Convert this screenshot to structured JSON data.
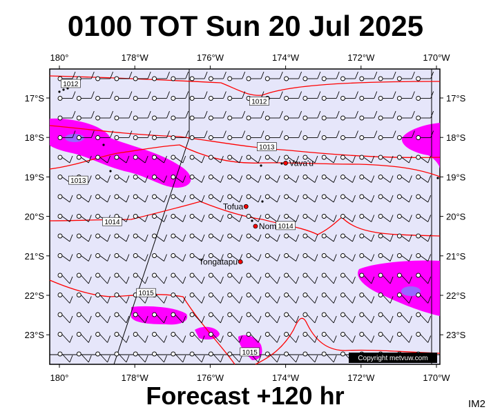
{
  "header": {
    "title": "0100 TOT Sun 20 Jul 2025"
  },
  "footer": {
    "forecast": "Forecast +120 hr",
    "tag": "IM2"
  },
  "map": {
    "x_ticks": [
      "180°",
      "178°W",
      "176°W",
      "174°W",
      "172°W",
      "170°W"
    ],
    "y_ticks": [
      "17°S",
      "18°S",
      "19°S",
      "20°S",
      "21°S",
      "22°S",
      "23°S"
    ],
    "places": [
      {
        "name": "Vava'u",
        "lon": -174.0,
        "lat": -18.65
      },
      {
        "name": "Tofua",
        "lon": -175.05,
        "lat": -19.75
      },
      {
        "name": "Nomuka",
        "lon": -174.8,
        "lat": -20.25
      },
      {
        "name": "Tongatapu",
        "lon": -175.2,
        "lat": -21.15
      }
    ],
    "isobars": [
      {
        "label": "1012",
        "lon": -179.7,
        "lat": -16.65
      },
      {
        "label": "1012",
        "lon": -174.7,
        "lat": -17.1
      },
      {
        "label": "1013",
        "lon": -174.5,
        "lat": -18.25
      },
      {
        "label": "1013",
        "lon": -179.5,
        "lat": -19.1
      },
      {
        "label": "1014",
        "lon": -178.6,
        "lat": -20.15
      },
      {
        "label": "1014",
        "lon": -174.0,
        "lat": -20.25
      },
      {
        "label": "1015",
        "lon": -177.7,
        "lat": -21.95
      },
      {
        "label": "1015",
        "lon": -174.95,
        "lat": -23.45
      }
    ],
    "copyright": "Copyright metvuw.com",
    "colors": {
      "sea": "#e6e6fa",
      "wind_strong": "#ff00ff",
      "wind_core": "#9966ff",
      "isobar": "#ff0000"
    }
  }
}
